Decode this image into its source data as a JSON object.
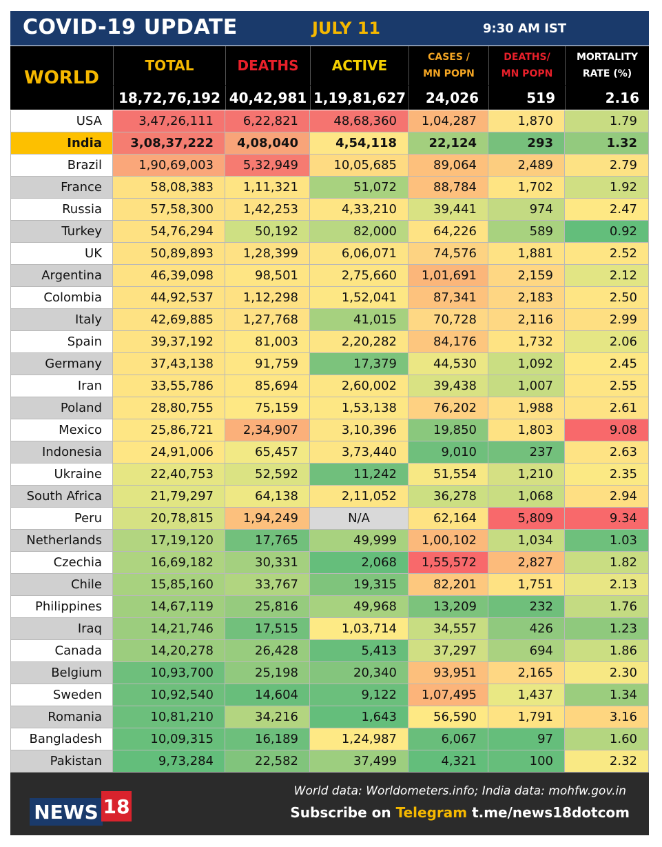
{
  "header": {
    "title": "COVID-19 UPDATE",
    "date": "JULY 11",
    "time": "9:30 AM IST"
  },
  "columns": {
    "world": "WORLD",
    "total": "TOTAL",
    "deaths": "DEATHS",
    "active": "ACTIVE",
    "cases_mn_1": "CASES /",
    "cases_mn_2": "MN POPN",
    "deaths_mn_1": "DEATHS/",
    "deaths_mn_2": "MN POPN",
    "mortality_1": "MORTALITY",
    "mortality_2": "RATE (%)"
  },
  "world": {
    "total": "18,72,76,192",
    "deaths": "40,42,981",
    "active": "1,19,81,627",
    "cases_mn": "24,026",
    "deaths_mn": "519",
    "mortality": "2.16"
  },
  "colors": {
    "header_blue": "#1a3a6b",
    "accent_yellow": "#f5b800",
    "deaths_red": "#e8202a",
    "deaths_mn_red": "#e8202a",
    "active_yellow": "#f5d000",
    "cases_orange": "#f5a623"
  },
  "rows": [
    {
      "country": "USA",
      "total": "3,47,26,111",
      "deaths": "6,22,821",
      "active": "48,68,360",
      "cases_mn": "1,04,287",
      "deaths_mn": "1,870",
      "mortality": "1.79",
      "colors": [
        "#f57470",
        "#f57470",
        "#f57470",
        "#fbb67a",
        "#fde386",
        "#c8dc82"
      ],
      "label_bg": "#ffffff"
    },
    {
      "country": "India",
      "total": "3,08,37,222",
      "deaths": "4,08,040",
      "active": "4,54,118",
      "cases_mn": "22,124",
      "deaths_mn": "293",
      "mortality": "1.32",
      "colors": [
        "#f57d71",
        "#f8a479",
        "#fee686",
        "#a3cf7e",
        "#77c07c",
        "#93ca7e"
      ],
      "label_bg": "#fdc000",
      "bold": true
    },
    {
      "country": "Brazil",
      "total": "1,90,69,003",
      "deaths": "5,32,949",
      "active": "10,05,685",
      "cases_mn": "89,064",
      "deaths_mn": "2,489",
      "mortality": "2.79",
      "colors": [
        "#faa77a",
        "#f67b71",
        "#fedb82",
        "#fdc07c",
        "#fccd7f",
        "#fde284"
      ],
      "label_bg": "#ffffff"
    },
    {
      "country": "France",
      "total": "58,08,383",
      "deaths": "1,11,321",
      "active": "51,072",
      "cases_mn": "88,784",
      "deaths_mn": "1,702",
      "mortality": "1.92",
      "colors": [
        "#fee182",
        "#fee483",
        "#a8d27f",
        "#fdc07d",
        "#fee483",
        "#d0df83"
      ],
      "label_bg": "#d0d0d0"
    },
    {
      "country": "Russia",
      "total": "57,58,300",
      "deaths": "1,42,253",
      "active": "4,33,210",
      "cases_mn": "39,441",
      "deaths_mn": "974",
      "mortality": "2.47",
      "colors": [
        "#fee182",
        "#fee183",
        "#fee584",
        "#d9e283",
        "#c3da82",
        "#fee884"
      ],
      "label_bg": "#ffffff"
    },
    {
      "country": "Turkey",
      "total": "54,76,294",
      "deaths": "50,192",
      "active": "82,000",
      "cases_mn": "64,226",
      "deaths_mn": "589",
      "mortality": "0.92",
      "colors": [
        "#fee182",
        "#cee083",
        "#b9d882",
        "#fee384",
        "#a8d27f",
        "#63be7b"
      ],
      "label_bg": "#d0d0d0"
    },
    {
      "country": "UK",
      "total": "50,89,893",
      "deaths": "1,28,399",
      "active": "6,06,071",
      "cases_mn": "74,576",
      "deaths_mn": "1,881",
      "mortality": "2.52",
      "colors": [
        "#fee182",
        "#fee184",
        "#fde484",
        "#fdd382",
        "#fee284",
        "#fee584"
      ],
      "label_bg": "#ffffff"
    },
    {
      "country": "Argentina",
      "total": "46,39,098",
      "deaths": "98,501",
      "active": "2,75,660",
      "cases_mn": "1,01,691",
      "deaths_mn": "2,159",
      "mortality": "2.12",
      "colors": [
        "#fee283",
        "#fee584",
        "#fde584",
        "#fbb67a",
        "#fed783",
        "#e2e584"
      ],
      "label_bg": "#d0d0d0"
    },
    {
      "country": "Colombia",
      "total": "44,92,537",
      "deaths": "1,12,298",
      "active": "1,52,041",
      "cases_mn": "87,341",
      "deaths_mn": "2,183",
      "mortality": "2.50",
      "colors": [
        "#fee283",
        "#fee183",
        "#fde784",
        "#fdc27d",
        "#fed683",
        "#fee584"
      ],
      "label_bg": "#ffffff"
    },
    {
      "country": "Italy",
      "total": "42,69,885",
      "deaths": "1,27,768",
      "active": "41,015",
      "cases_mn": "70,728",
      "deaths_mn": "2,116",
      "mortality": "2.99",
      "colors": [
        "#fee283",
        "#fee184",
        "#a6d17f",
        "#fed884",
        "#fed883",
        "#fedf82"
      ],
      "label_bg": "#d0d0d0"
    },
    {
      "country": "Spain",
      "total": "39,37,192",
      "deaths": "81,003",
      "active": "2,20,282",
      "cases_mn": "84,176",
      "deaths_mn": "1,732",
      "mortality": "2.06",
      "colors": [
        "#fee383",
        "#fee784",
        "#fde584",
        "#fdc67e",
        "#fee383",
        "#e5e684"
      ],
      "label_bg": "#ffffff"
    },
    {
      "country": "Germany",
      "total": "37,43,138",
      "deaths": "91,759",
      "active": "17,379",
      "cases_mn": "44,530",
      "deaths_mn": "1,092",
      "mortality": "2.45",
      "colors": [
        "#fee383",
        "#fee684",
        "#7cc37c",
        "#ebe784",
        "#cade82",
        "#fee884"
      ],
      "label_bg": "#d0d0d0"
    },
    {
      "country": "Iran",
      "total": "33,55,786",
      "deaths": "85,694",
      "active": "2,60,002",
      "cases_mn": "39,438",
      "deaths_mn": "1,007",
      "mortality": "2.55",
      "colors": [
        "#fee483",
        "#fee684",
        "#fde684",
        "#d9e283",
        "#c6dc82",
        "#fee584"
      ],
      "label_bg": "#ffffff"
    },
    {
      "country": "Poland",
      "total": "28,80,755",
      "deaths": "75,159",
      "active": "1,53,138",
      "cases_mn": "76,202",
      "deaths_mn": "1,988",
      "mortality": "2.61",
      "colors": [
        "#fee584",
        "#fee884",
        "#fde784",
        "#fed182",
        "#fee084",
        "#fee384"
      ],
      "label_bg": "#d0d0d0"
    },
    {
      "country": "Mexico",
      "total": "25,86,721",
      "deaths": "2,34,907",
      "active": "3,10,396",
      "cases_mn": "19,850",
      "deaths_mn": "1,803",
      "mortality": "9.08",
      "colors": [
        "#fee684",
        "#fbb07a",
        "#fde584",
        "#8ac87d",
        "#fee283",
        "#f8696b"
      ],
      "label_bg": "#ffffff"
    },
    {
      "country": "Indonesia",
      "total": "24,91,006",
      "deaths": "65,457",
      "active": "3,73,440",
      "cases_mn": "9,010",
      "deaths_mn": "237",
      "mortality": "2.63",
      "colors": [
        "#fee684",
        "#f2e985",
        "#fde584",
        "#6fbf7c",
        "#73c07c",
        "#fee384"
      ],
      "label_bg": "#d0d0d0"
    },
    {
      "country": "Ukraine",
      "total": "22,40,753",
      "deaths": "52,592",
      "active": "11,242",
      "cases_mn": "51,554",
      "deaths_mn": "1,210",
      "mortality": "2.35",
      "colors": [
        "#e6e683",
        "#dbe383",
        "#70bf7c",
        "#f7e884",
        "#d5e083",
        "#fbe984"
      ],
      "label_bg": "#ffffff"
    },
    {
      "country": "South Africa",
      "total": "21,79,297",
      "deaths": "64,138",
      "active": "2,11,052",
      "cases_mn": "36,278",
      "deaths_mn": "1,068",
      "mortality": "2.94",
      "colors": [
        "#e1e583",
        "#eee884",
        "#fde584",
        "#ccdf82",
        "#c9dd82",
        "#fedf83"
      ],
      "label_bg": "#d0d0d0"
    },
    {
      "country": "Peru",
      "total": "20,78,815",
      "deaths": "1,94,249",
      "active": "N/A",
      "cases_mn": "62,164",
      "deaths_mn": "5,809",
      "mortality": "9.34",
      "colors": [
        "#d6e183",
        "#fcc07d",
        "#d9d9d9",
        "#fee383",
        "#f8696b",
        "#f8696b"
      ],
      "label_bg": "#ffffff"
    },
    {
      "country": "Netherlands",
      "total": "17,19,120",
      "deaths": "17,765",
      "active": "49,999",
      "cases_mn": "1,00,102",
      "deaths_mn": "1,034",
      "mortality": "1.03",
      "colors": [
        "#b2d580",
        "#72c07c",
        "#a8d27f",
        "#fbb97b",
        "#c6dc82",
        "#6ec07c"
      ],
      "label_bg": "#d0d0d0"
    },
    {
      "country": "Czechia",
      "total": "16,69,182",
      "deaths": "30,331",
      "active": "2,068",
      "cases_mn": "1,55,572",
      "deaths_mn": "2,827",
      "mortality": "1.82",
      "colors": [
        "#aed480",
        "#a4d07f",
        "#65be7b",
        "#f8696b",
        "#fcbb7b",
        "#c9dd82"
      ],
      "label_bg": "#ffffff"
    },
    {
      "country": "Chile",
      "total": "15,85,160",
      "deaths": "33,767",
      "active": "19,315",
      "cases_mn": "82,201",
      "deaths_mn": "1,751",
      "mortality": "2.13",
      "colors": [
        "#a8d27f",
        "#b1d580",
        "#7fc47c",
        "#fdc87e",
        "#fee283",
        "#e8e684"
      ],
      "label_bg": "#d0d0d0"
    },
    {
      "country": "Philippines",
      "total": "14,67,119",
      "deaths": "25,816",
      "active": "49,968",
      "cases_mn": "13,209",
      "deaths_mn": "232",
      "mortality": "1.76",
      "colors": [
        "#a1cf7e",
        "#96cb7e",
        "#a7d27f",
        "#7cc37c",
        "#6fbf7b",
        "#c4db82"
      ],
      "label_bg": "#ffffff"
    },
    {
      "country": "Iraq",
      "total": "14,21,746",
      "deaths": "17,515",
      "active": "1,03,714",
      "cases_mn": "34,557",
      "deaths_mn": "426",
      "mortality": "1.23",
      "colors": [
        "#9ccd7e",
        "#72c07c",
        "#fdea85",
        "#c8dd82",
        "#90c97e",
        "#8fc97d"
      ],
      "label_bg": "#d0d0d0"
    },
    {
      "country": "Canada",
      "total": "14,20,278",
      "deaths": "26,428",
      "active": "5,413",
      "cases_mn": "37,297",
      "deaths_mn": "694",
      "mortality": "1.86",
      "colors": [
        "#9ccd7e",
        "#98cc7e",
        "#68be7b",
        "#d0df83",
        "#aad280",
        "#cbde82"
      ],
      "label_bg": "#ffffff"
    },
    {
      "country": "Belgium",
      "total": "10,93,700",
      "deaths": "25,198",
      "active": "20,340",
      "cases_mn": "93,951",
      "deaths_mn": "2,165",
      "mortality": "2.30",
      "colors": [
        "#6ebf7c",
        "#91c97e",
        "#84c57d",
        "#fcbf7c",
        "#fed783",
        "#f7e884"
      ],
      "label_bg": "#d0d0d0"
    },
    {
      "country": "Sweden",
      "total": "10,92,540",
      "deaths": "14,604",
      "active": "9,122",
      "cases_mn": "1,07,495",
      "deaths_mn": "1,437",
      "mortality": "1.34",
      "colors": [
        "#6ebf7c",
        "#68be7b",
        "#6bbf7c",
        "#fcb47a",
        "#e9e884",
        "#9bcd7e"
      ],
      "label_bg": "#ffffff"
    },
    {
      "country": "Romania",
      "total": "10,81,210",
      "deaths": "34,216",
      "active": "1,643",
      "cases_mn": "56,590",
      "deaths_mn": "1,791",
      "mortality": "3.16",
      "colors": [
        "#6cbf7c",
        "#b3d580",
        "#64be7b",
        "#fee984",
        "#fee383",
        "#fed680"
      ],
      "label_bg": "#d0d0d0"
    },
    {
      "country": "Bangladesh",
      "total": "10,09,315",
      "deaths": "16,189",
      "active": "1,24,987",
      "cases_mn": "6,067",
      "deaths_mn": "97",
      "mortality": "1.60",
      "colors": [
        "#68bf7b",
        "#6dbf7c",
        "#fee985",
        "#69be7b",
        "#65be7b",
        "#b4d680"
      ],
      "label_bg": "#ffffff"
    },
    {
      "country": "Pakistan",
      "total": "9,73,284",
      "deaths": "22,582",
      "active": "37,499",
      "cases_mn": "4,321",
      "deaths_mn": "100",
      "mortality": "2.32",
      "colors": [
        "#63be7b",
        "#81c47c",
        "#9dce7f",
        "#63be7b",
        "#66be7b",
        "#f9e984"
      ],
      "label_bg": "#d0d0d0"
    }
  ],
  "footer": {
    "sources": "World data: Worldometers.info; India data: mohfw.gov.in",
    "subscribe_prefix": "Subscribe on",
    "telegram": "Telegram",
    "link": "t.me/news18dotcom",
    "logo_word": "NEWS",
    "logo_number": "18"
  }
}
